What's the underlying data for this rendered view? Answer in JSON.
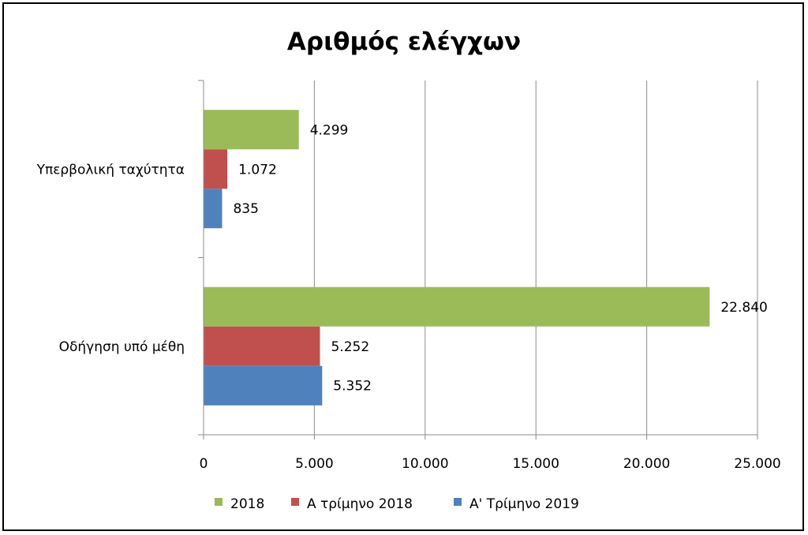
{
  "chart_data": {
    "type": "bar",
    "orientation": "horizontal",
    "title": "Αριθμός ελέγχων",
    "categories": [
      "Υπερβολική ταχύτητα",
      "Οδήγηση υπό μέθη"
    ],
    "series": [
      {
        "name": "2018",
        "color": "#9BBB59",
        "values": [
          4299,
          22840
        ],
        "labels": [
          "4.299",
          "22.840"
        ]
      },
      {
        "name": "A τρίμηνο 2018",
        "color": "#C0504D",
        "values": [
          1072,
          5252
        ],
        "labels": [
          "1.072",
          "5.252"
        ]
      },
      {
        "name": "Α' Τρίμηνο 2019",
        "color": "#4F81BD",
        "values": [
          835,
          5352
        ],
        "labels": [
          "835",
          "5.352"
        ]
      }
    ],
    "xlim": [
      0,
      25000
    ],
    "xticks": [
      0,
      5000,
      10000,
      15000,
      20000,
      25000
    ],
    "xtick_labels": [
      "0",
      "5.000",
      "10.000",
      "15.000",
      "20.000",
      "25.000"
    ],
    "grid": "vertical",
    "legend_position": "bottom",
    "xlabel": "",
    "ylabel": ""
  }
}
